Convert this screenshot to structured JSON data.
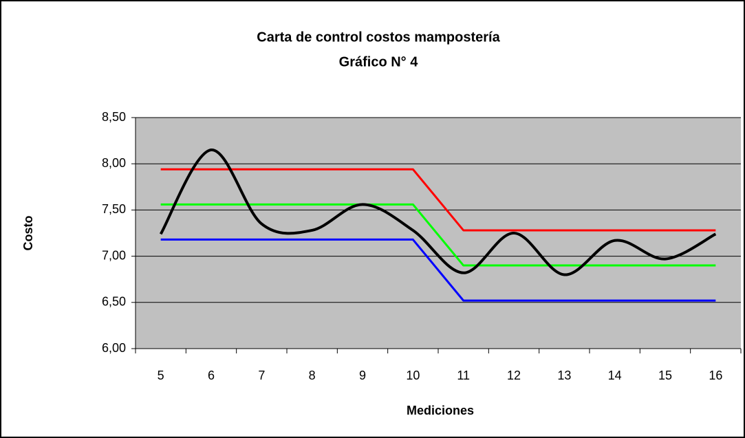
{
  "chart_data": {
    "type": "line",
    "title": "Carta de control costos mampostería",
    "subtitle": "Gráfico N° 4",
    "y_label": "Costo",
    "x_label": "Mediciones",
    "categories": [
      "5",
      "6",
      "7",
      "8",
      "9",
      "10",
      "11",
      "12",
      "13",
      "14",
      "15",
      "16"
    ],
    "series": [
      {
        "color": "#ff0000",
        "values": [
          7.94,
          7.94,
          7.94,
          7.94,
          7.94,
          7.94,
          7.28,
          7.28,
          7.28,
          7.28,
          7.28,
          7.28
        ]
      },
      {
        "color": "#00ff00",
        "values": [
          7.56,
          7.56,
          7.56,
          7.56,
          7.56,
          7.56,
          6.9,
          6.9,
          6.9,
          6.9,
          6.9,
          6.9
        ]
      },
      {
        "color": "#0000ff",
        "values": [
          7.18,
          7.18,
          7.18,
          7.18,
          7.18,
          7.18,
          6.52,
          6.52,
          6.52,
          6.52,
          6.52,
          6.52
        ]
      },
      {
        "color": "#000000",
        "smooth": true,
        "values": [
          7.24,
          8.15,
          7.35,
          7.28,
          7.56,
          7.28,
          6.82,
          7.25,
          6.8,
          7.17,
          6.97,
          7.24
        ]
      }
    ],
    "ylim": [
      6,
      8.5
    ],
    "yticks": [
      {
        "value": 6,
        "label": "6,00"
      },
      {
        "value": 6.5,
        "label": "6,50"
      },
      {
        "value": 7,
        "label": "7,00"
      },
      {
        "value": 7.5,
        "label": "7,50"
      },
      {
        "value": 8,
        "label": "8,00"
      },
      {
        "value": 8.5,
        "label": "8,50"
      }
    ],
    "grid": true,
    "plot_background": "#c0c0c0"
  }
}
